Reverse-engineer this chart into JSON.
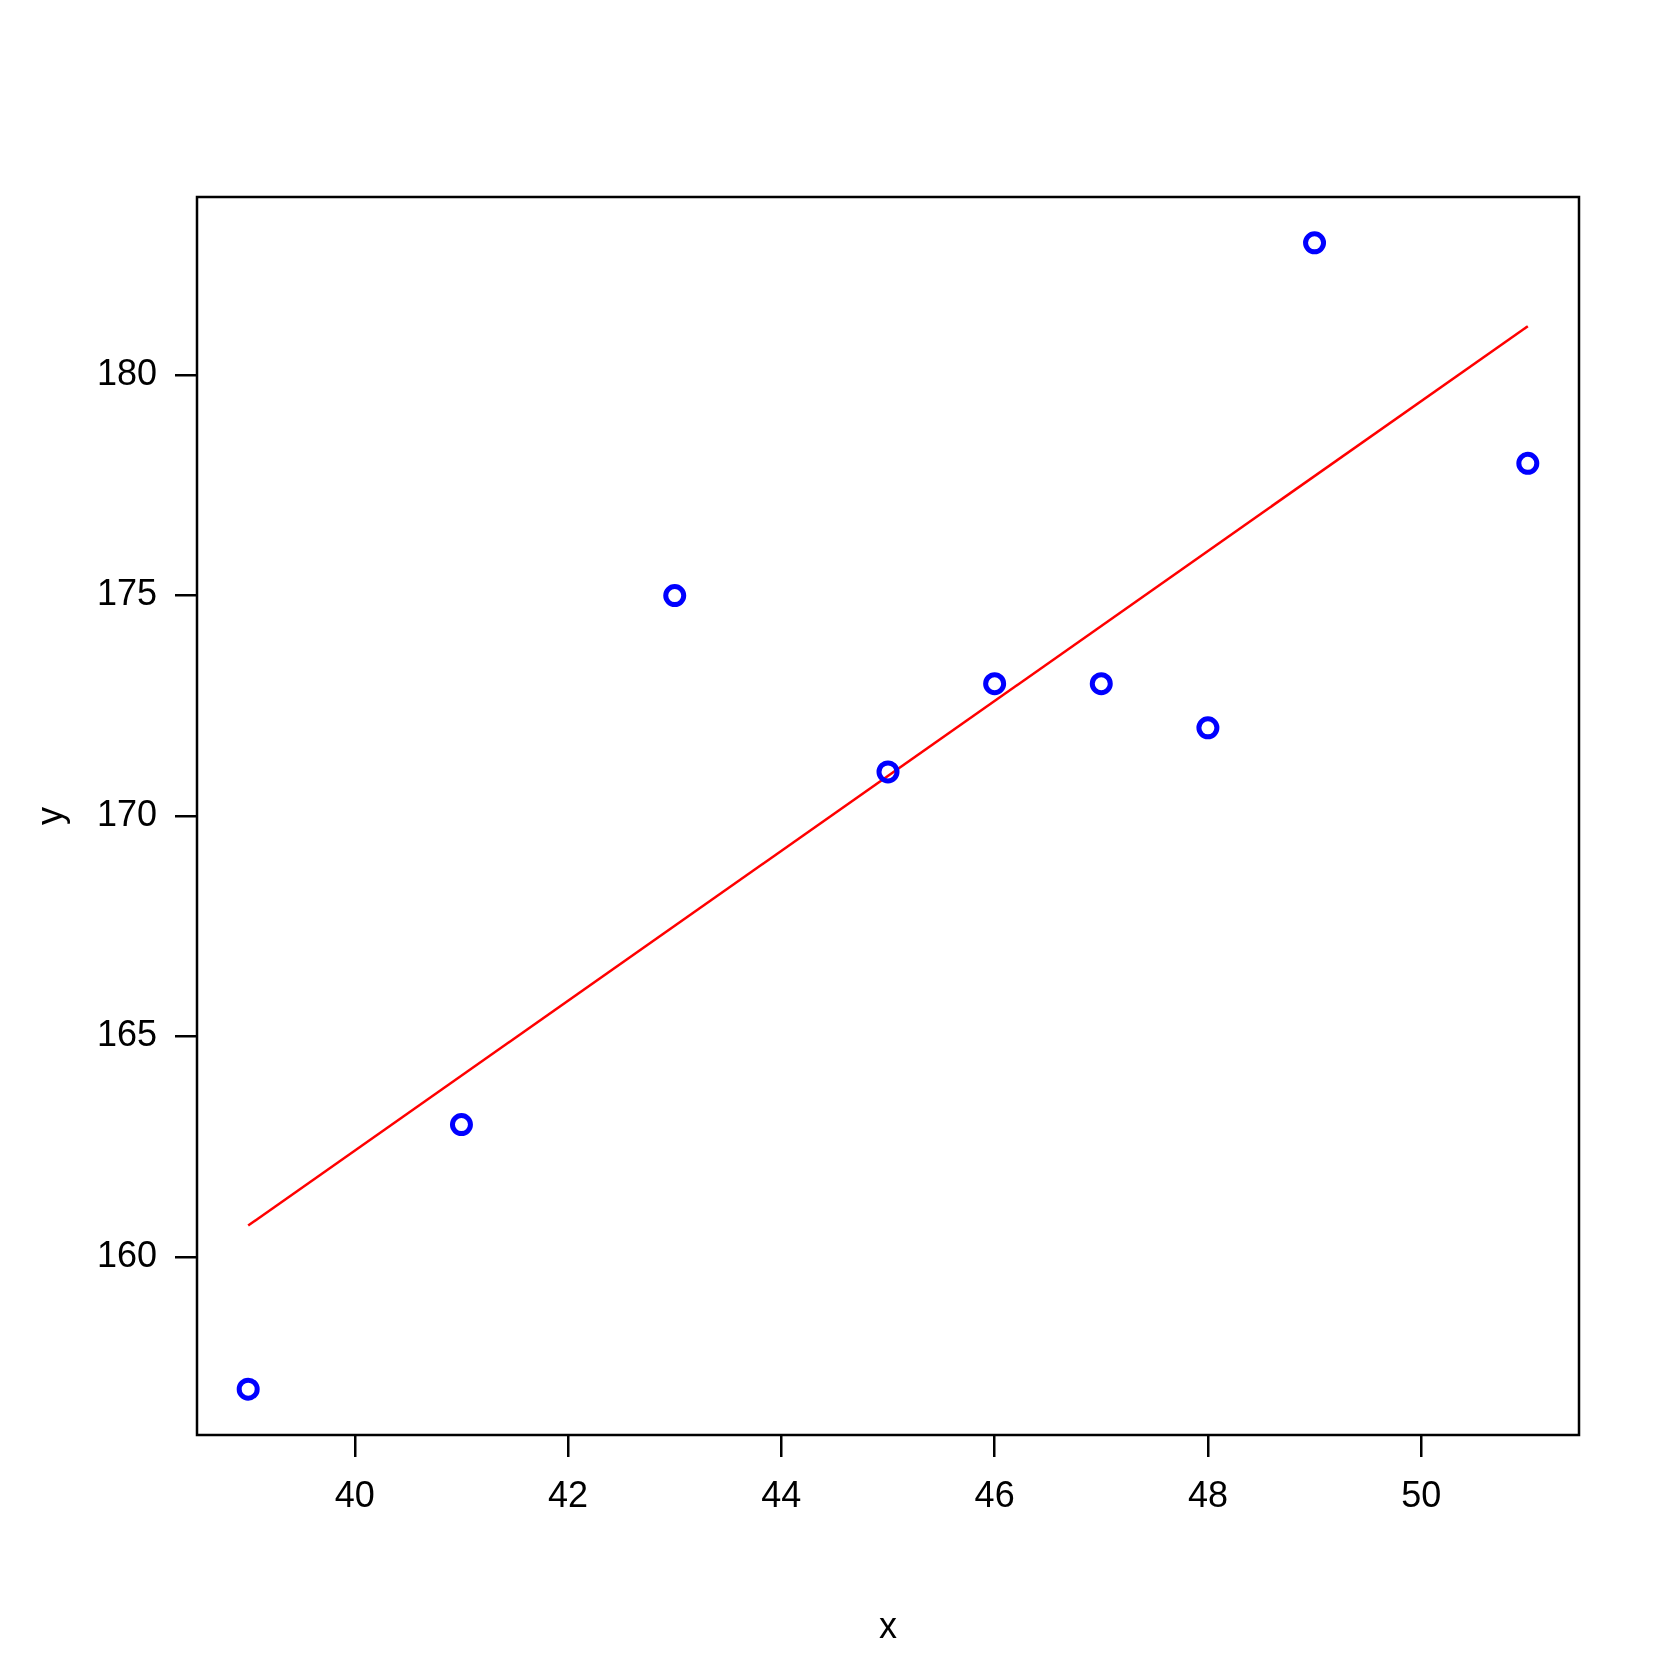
{
  "chart_data": {
    "type": "scatter",
    "xlabel": "x",
    "ylabel": "y",
    "xlim": [
      38.52,
      51.48
    ],
    "ylim": [
      155.96,
      184.04
    ],
    "xticks": [
      40,
      42,
      44,
      46,
      48,
      50
    ],
    "yticks": [
      160,
      165,
      170,
      175,
      180
    ],
    "grid": false,
    "legend": false,
    "series": [
      {
        "type": "scatter",
        "color": "#0000ff",
        "marker": "circle",
        "x": [
          39,
          41,
          43,
          45,
          46,
          47,
          48,
          49,
          51
        ],
        "values": [
          157,
          163,
          175,
          171,
          173,
          173,
          172,
          183,
          178
        ]
      },
      {
        "type": "line",
        "color": "#ff0000",
        "marker": "none",
        "line_style": "solid",
        "x": [
          39,
          51
        ],
        "values": [
          160.71,
          181.11
        ]
      }
    ]
  }
}
